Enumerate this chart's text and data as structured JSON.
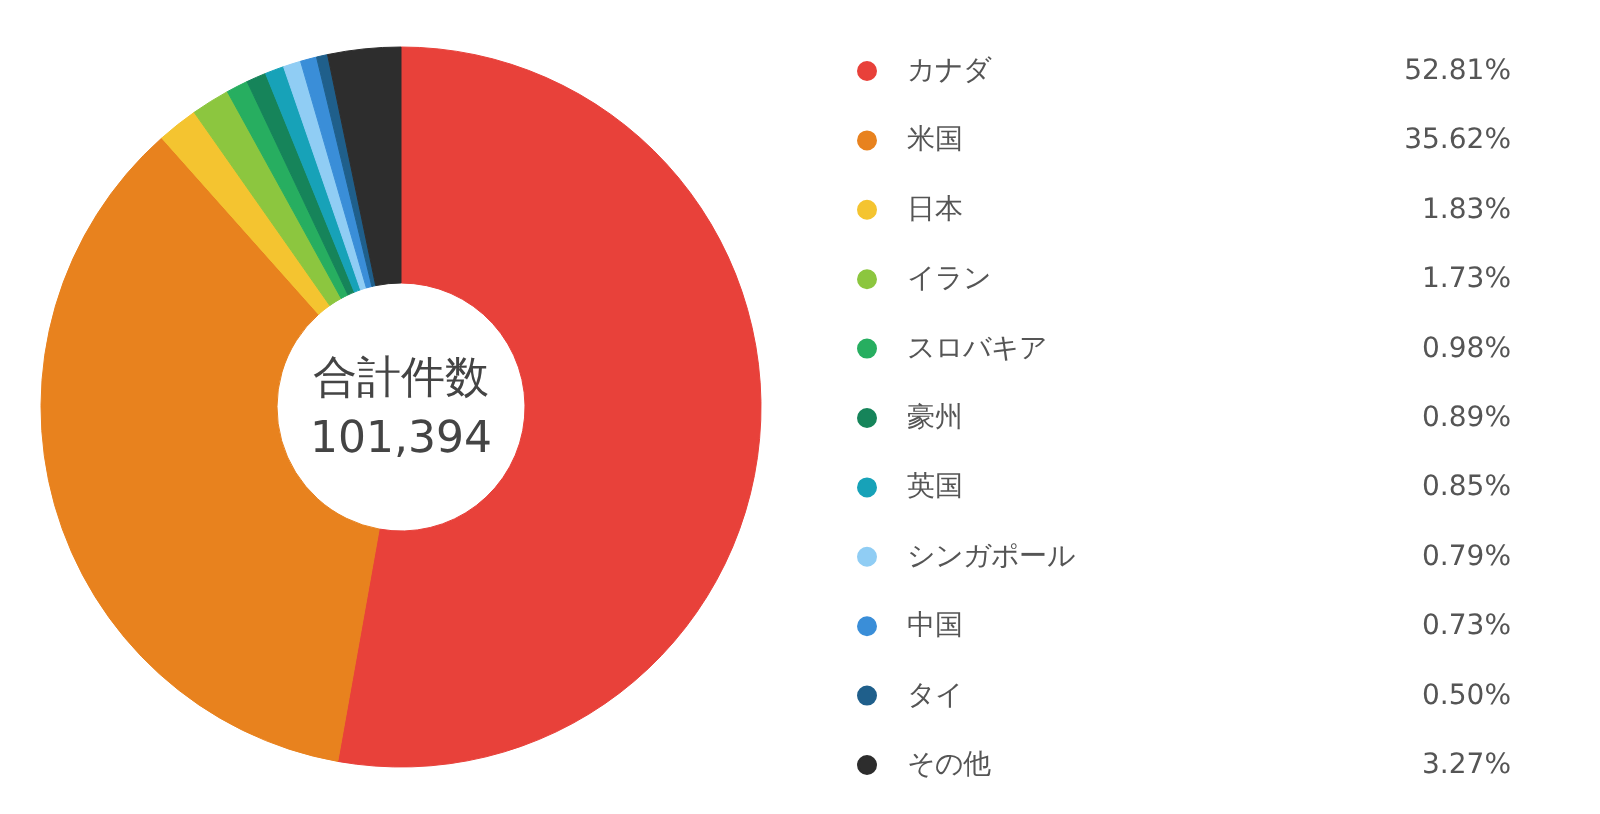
{
  "chart_data": {
    "type": "donut",
    "categories": [
      "カナダ",
      "米国",
      "日本",
      "イラン",
      "スロバキア",
      "豪州",
      "英国",
      "シンガポール",
      "中国",
      "タイ",
      "その他"
    ],
    "values": [
      52.81,
      35.62,
      1.83,
      1.73,
      0.98,
      0.89,
      0.85,
      0.79,
      0.73,
      0.5,
      3.27
    ],
    "value_labels": [
      "52.81%",
      "35.62%",
      "1.83%",
      "1.73%",
      "0.98%",
      "0.89%",
      "0.85%",
      "0.79%",
      "0.73%",
      "0.50%",
      "3.27%"
    ],
    "colors": [
      "#e8413a",
      "#e8821e",
      "#f4c430",
      "#8cc63f",
      "#27ae60",
      "#16845a",
      "#17a2b8",
      "#90cdf4",
      "#3a8ed8",
      "#1f5f8b",
      "#2d2d2d"
    ],
    "annotations": [
      "合計件数",
      "101,394"
    ],
    "legend": "right"
  }
}
